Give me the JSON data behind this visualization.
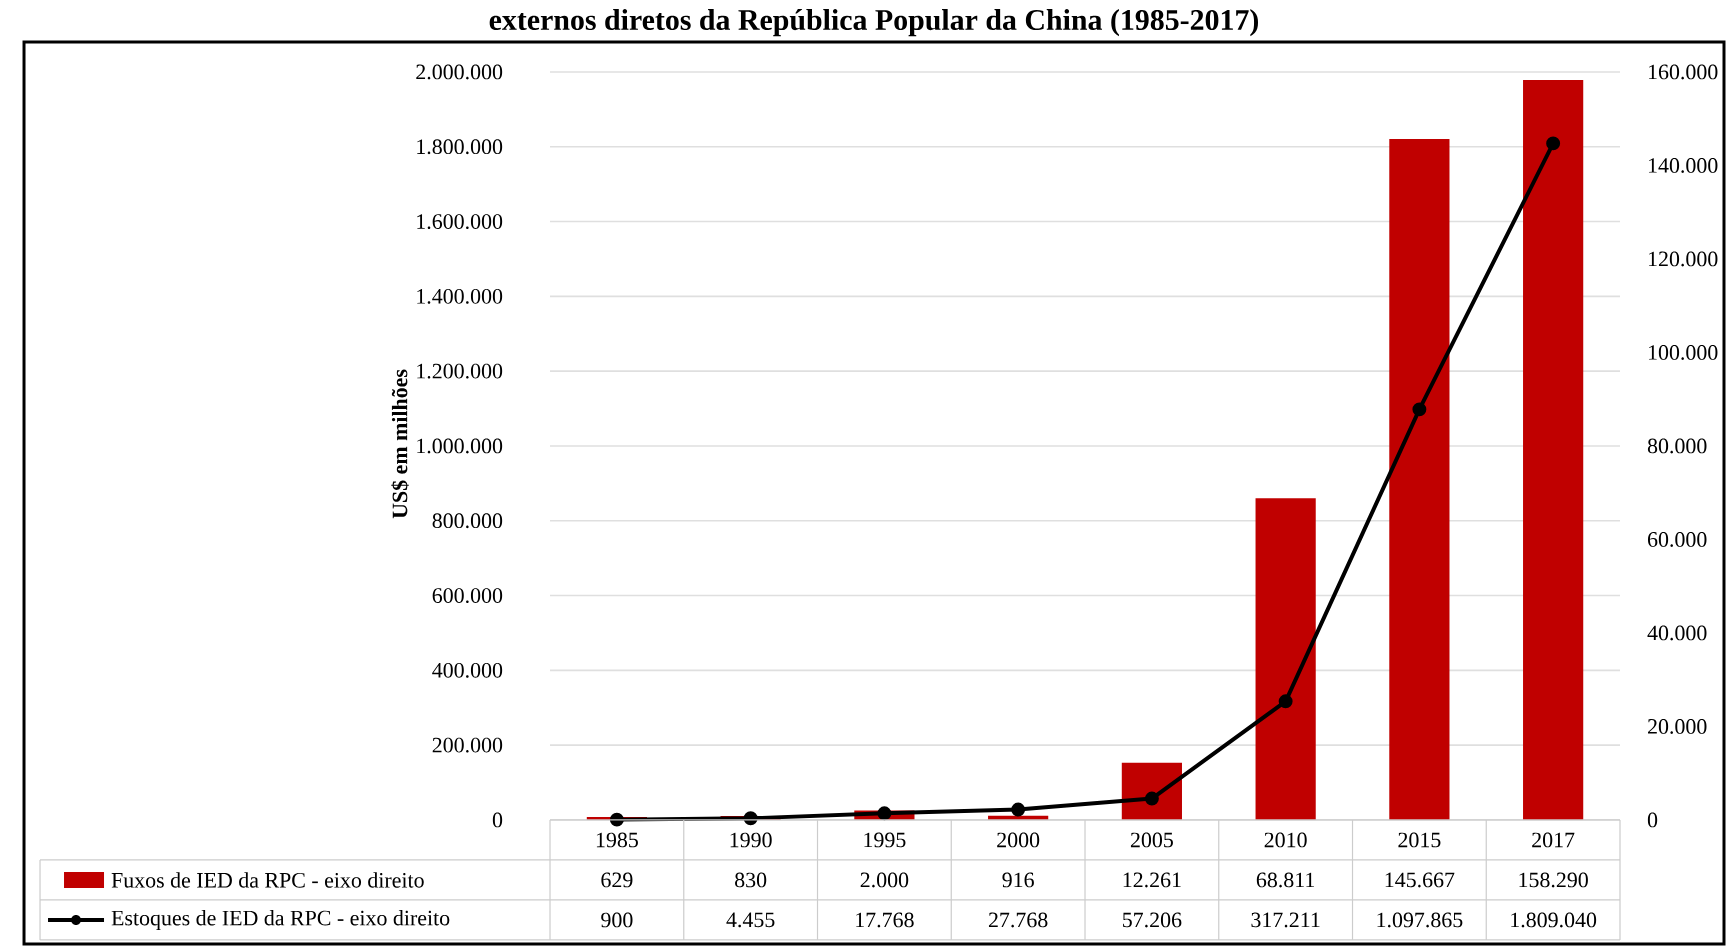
{
  "chart_data": {
    "type": "bar",
    "title": "externos diretos da República Popular da China (1985-2017)",
    "ylabel": "US$ em milhões",
    "categories": [
      "1985",
      "1990",
      "1995",
      "2000",
      "2005",
      "2010",
      "2015",
      "2017"
    ],
    "series": [
      {
        "name": "Fuxos de IED da RPC - eixo direito",
        "axis": "y2",
        "color": "#c00000",
        "values": [
          629,
          830,
          2000,
          916,
          12261,
          68811,
          145667,
          158290
        ],
        "value_labels": [
          "629",
          "830",
          "2.000",
          "916",
          "12.261",
          "68.811",
          "145.667",
          "158.290"
        ]
      },
      {
        "name": "Estoques de IED da RPC - eixo direito",
        "type": "line",
        "axis": "y",
        "color": "#000000",
        "marker": "circle",
        "values": [
          900,
          4455,
          17768,
          27768,
          57206,
          317211,
          1097865,
          1809040
        ],
        "value_labels": [
          "900",
          "4.455",
          "17.768",
          "27.768",
          "57.206",
          "317.211",
          "1.097.865",
          "1.809.040"
        ]
      }
    ],
    "ylim": [
      0,
      2000000
    ],
    "yticks": [
      {
        "value": 0,
        "label": "0"
      },
      {
        "value": 200000,
        "label": "200.000"
      },
      {
        "value": 400000,
        "label": "400.000"
      },
      {
        "value": 600000,
        "label": "600.000"
      },
      {
        "value": 800000,
        "label": "800.000"
      },
      {
        "value": 1000000,
        "label": "1.000.000"
      },
      {
        "value": 1200000,
        "label": "1.200.000"
      },
      {
        "value": 1400000,
        "label": "1.400.000"
      },
      {
        "value": 1600000,
        "label": "1.600.000"
      },
      {
        "value": 1800000,
        "label": "1.800.000"
      },
      {
        "value": 2000000,
        "label": "2.000.000"
      }
    ],
    "y2lim": [
      0,
      160000
    ],
    "y2ticks": [
      {
        "value": 0,
        "label": "0"
      },
      {
        "value": 20000,
        "label": "20.000"
      },
      {
        "value": 40000,
        "label": "40.000"
      },
      {
        "value": 60000,
        "label": "60.000"
      },
      {
        "value": 80000,
        "label": "80.000"
      },
      {
        "value": 100000,
        "label": "100.000"
      },
      {
        "value": 120000,
        "label": "120.000"
      },
      {
        "value": 140000,
        "label": "140.000"
      },
      {
        "value": 160000,
        "label": "160.000"
      }
    ],
    "grid": "y",
    "legend": "bottom"
  }
}
